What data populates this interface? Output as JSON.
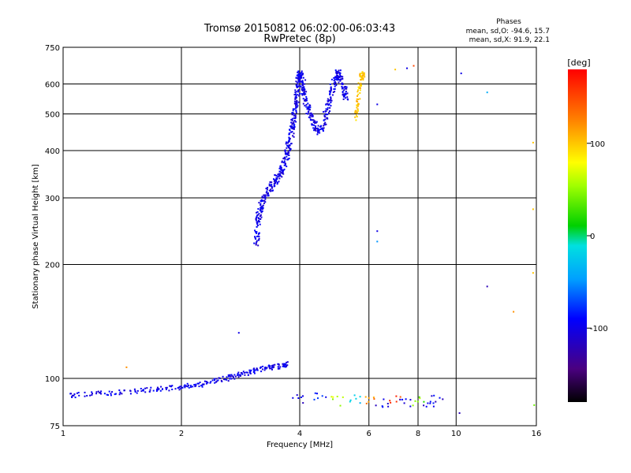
{
  "chart_data": {
    "type": "scatter",
    "title": "Tromsø 20150812 06:02:00-06:03:43",
    "subtitle": "RwPretec (8p)",
    "xlabel": "Frequency [MHz]",
    "ylabel": "Stationary phase Virtual Height [km]",
    "x_scale": "log",
    "y_scale": "log",
    "xlim": [
      1,
      16
    ],
    "ylim": [
      75,
      750
    ],
    "grid": true,
    "x_ticks": [
      1,
      2,
      4,
      6,
      8,
      10,
      16
    ],
    "x_tick_labels": [
      "1",
      "2",
      "4",
      "6",
      "8",
      "10",
      "16"
    ],
    "y_ticks": [
      75,
      100,
      200,
      300,
      400,
      500,
      600,
      750
    ],
    "y_tick_labels": [
      "75",
      "100",
      "200",
      "300",
      "400",
      "500",
      "600",
      "750"
    ],
    "info": {
      "header": "Phases",
      "line_o": "mean, sd,O: -94.6, 15.7",
      "line_x": "mean, sd,X:  91.9, 22.1"
    },
    "colorbar": {
      "label": "[deg]",
      "range": [
        -180,
        180
      ],
      "ticks": [
        100,
        0,
        -100
      ],
      "tick_labels": [
        "100",
        "0",
        "-100"
      ],
      "colormap": "rainbow"
    },
    "o_trace": {
      "name": "O-mode",
      "phase": -100,
      "points": [
        [
          3.1,
          225
        ],
        [
          3.12,
          250
        ],
        [
          3.15,
          270
        ],
        [
          3.2,
          285
        ],
        [
          3.25,
          300
        ],
        [
          3.35,
          315
        ],
        [
          3.45,
          330
        ],
        [
          3.55,
          345
        ],
        [
          3.62,
          360
        ],
        [
          3.7,
          385
        ],
        [
          3.75,
          410
        ],
        [
          3.8,
          440
        ],
        [
          3.85,
          470
        ],
        [
          3.88,
          500
        ],
        [
          3.92,
          540
        ],
        [
          3.95,
          580
        ],
        [
          3.98,
          620
        ],
        [
          4.0,
          640
        ],
        [
          4.05,
          620
        ],
        [
          4.1,
          580
        ],
        [
          4.15,
          540
        ],
        [
          4.25,
          500
        ],
        [
          4.35,
          470
        ],
        [
          4.45,
          450
        ],
        [
          4.6,
          470
        ],
        [
          4.7,
          510
        ],
        [
          4.8,
          560
        ],
        [
          4.9,
          610
        ],
        [
          5.0,
          640
        ],
        [
          5.1,
          620
        ],
        [
          5.2,
          580
        ],
        [
          5.25,
          550
        ]
      ]
    },
    "x_trace": {
      "name": "X-mode",
      "phase": 100,
      "points": [
        [
          5.55,
          480
        ],
        [
          5.6,
          520
        ],
        [
          5.65,
          560
        ],
        [
          5.7,
          600
        ],
        [
          5.75,
          630
        ],
        [
          5.8,
          640
        ]
      ]
    },
    "e_layer": {
      "phase": -100,
      "points": [
        [
          1.0,
          90
        ],
        [
          1.2,
          91
        ],
        [
          1.4,
          92
        ],
        [
          1.6,
          93
        ],
        [
          1.8,
          94
        ],
        [
          2.0,
          95
        ],
        [
          2.2,
          96
        ],
        [
          2.4,
          98
        ],
        [
          2.6,
          100
        ],
        [
          2.8,
          102
        ],
        [
          3.0,
          104
        ],
        [
          3.2,
          106
        ],
        [
          3.4,
          107
        ],
        [
          3.6,
          108
        ],
        [
          3.7,
          109
        ]
      ]
    },
    "bottom_band": {
      "points": [
        [
          4.0,
          88,
          -100
        ],
        [
          4.5,
          89,
          -80
        ],
        [
          5.0,
          87,
          60
        ],
        [
          5.5,
          88,
          -30
        ],
        [
          6.0,
          87,
          120
        ],
        [
          6.5,
          86,
          -100
        ],
        [
          7.0,
          88,
          150
        ],
        [
          7.5,
          86,
          -100
        ],
        [
          8.0,
          87,
          40
        ],
        [
          8.5,
          86,
          -100
        ],
        [
          9.0,
          88,
          -100
        ]
      ]
    },
    "outliers": [
      [
        6.3,
        530,
        -100
      ],
      [
        6.3,
        245,
        -100
      ],
      [
        6.3,
        230,
        -50
      ],
      [
        7.5,
        660,
        -100
      ],
      [
        7.8,
        670,
        150
      ],
      [
        10.3,
        640,
        -100
      ],
      [
        12.0,
        570,
        -40
      ],
      [
        12.0,
        175,
        -120
      ],
      [
        14.0,
        150,
        120
      ],
      [
        15.7,
        280,
        100
      ],
      [
        15.7,
        190,
        100
      ],
      [
        15.7,
        420,
        100
      ],
      [
        2.8,
        132,
        -100
      ],
      [
        1.45,
        107,
        120
      ],
      [
        7.0,
        655,
        100
      ],
      [
        10.2,
        81,
        -120
      ],
      [
        15.8,
        85,
        40
      ]
    ]
  }
}
